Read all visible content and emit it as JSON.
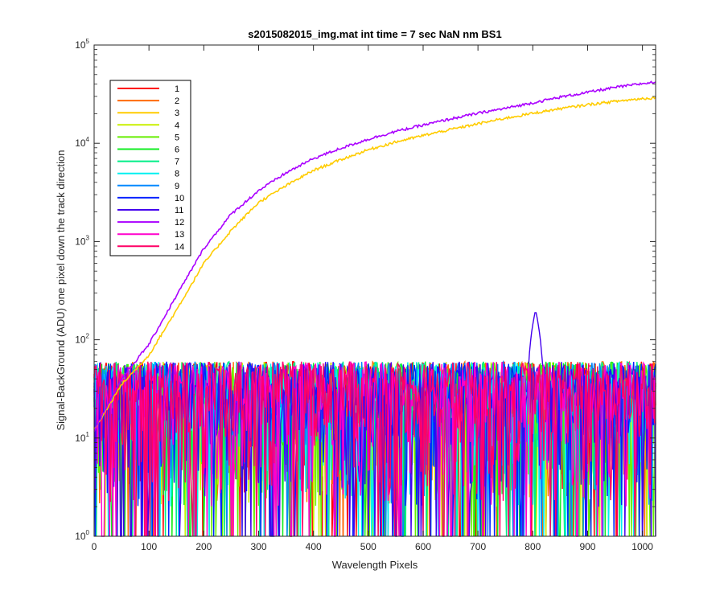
{
  "chart_data": {
    "type": "line",
    "title": "s2015082015_img.mat int time = 7 sec  NaN nm BS1",
    "xlabel": "Wavelength Pixels",
    "ylabel": "Signal-BackGround (ADU) one pixel down the track direction",
    "xlim": [
      0,
      1024
    ],
    "ylim": [
      1,
      100000
    ],
    "yscale": "log",
    "x_ticks": [
      0,
      100,
      200,
      300,
      400,
      500,
      600,
      700,
      800,
      900,
      1000
    ],
    "y_ticks": [
      {
        "base": "10",
        "exp": "0",
        "value": 1
      },
      {
        "base": "10",
        "exp": "1",
        "value": 10
      },
      {
        "base": "10",
        "exp": "2",
        "value": 100
      },
      {
        "base": "10",
        "exp": "3",
        "value": 1000
      },
      {
        "base": "10",
        "exp": "4",
        "value": 10000
      },
      {
        "base": "10",
        "exp": "5",
        "value": 100000
      }
    ],
    "grid": false,
    "legend_position": "top-left",
    "series": [
      {
        "name": "1",
        "color": "#ff0000",
        "kind": "noise"
      },
      {
        "name": "2",
        "color": "#ff6a00",
        "kind": "noise"
      },
      {
        "name": "3",
        "color": "#ffcc00",
        "kind": "rising",
        "points": [
          [
            0,
            12
          ],
          [
            50,
            35
          ],
          [
            100,
            70
          ],
          [
            150,
            200
          ],
          [
            200,
            600
          ],
          [
            250,
            1300
          ],
          [
            300,
            2500
          ],
          [
            350,
            3700
          ],
          [
            400,
            5300
          ],
          [
            450,
            6800
          ],
          [
            500,
            8600
          ],
          [
            550,
            10300
          ],
          [
            600,
            12000
          ],
          [
            650,
            13800
          ],
          [
            700,
            15800
          ],
          [
            750,
            18000
          ],
          [
            800,
            20200
          ],
          [
            850,
            22500
          ],
          [
            900,
            24700
          ],
          [
            950,
            26700
          ],
          [
            1000,
            28500
          ],
          [
            1024,
            29000
          ]
        ]
      },
      {
        "name": "4",
        "color": "#c8f000",
        "kind": "noise"
      },
      {
        "name": "5",
        "color": "#66ee00",
        "kind": "noise"
      },
      {
        "name": "6",
        "color": "#11ee22",
        "kind": "noise"
      },
      {
        "name": "7",
        "color": "#00ee88",
        "kind": "noise"
      },
      {
        "name": "8",
        "color": "#00f0f0",
        "kind": "noise"
      },
      {
        "name": "9",
        "color": "#0088ff",
        "kind": "noise"
      },
      {
        "name": "10",
        "color": "#0022ff",
        "kind": "noise"
      },
      {
        "name": "11",
        "color": "#4400ee",
        "kind": "noise_peak",
        "peak": {
          "x": 805,
          "y": 200
        }
      },
      {
        "name": "12",
        "color": "#aa00ff",
        "kind": "rising",
        "points": [
          [
            0,
            12
          ],
          [
            50,
            40
          ],
          [
            100,
            90
          ],
          [
            150,
            280
          ],
          [
            200,
            850
          ],
          [
            250,
            1900
          ],
          [
            300,
            3300
          ],
          [
            350,
            5000
          ],
          [
            400,
            7000
          ],
          [
            450,
            8900
          ],
          [
            500,
            11000
          ],
          [
            550,
            13200
          ],
          [
            600,
            15300
          ],
          [
            650,
            17700
          ],
          [
            700,
            20200
          ],
          [
            750,
            22700
          ],
          [
            800,
            25800
          ],
          [
            850,
            29500
          ],
          [
            900,
            33000
          ],
          [
            950,
            37000
          ],
          [
            1000,
            40500
          ],
          [
            1024,
            42000
          ]
        ]
      },
      {
        "name": "13",
        "color": "#ff00cc",
        "kind": "noise"
      },
      {
        "name": "14",
        "color": "#ff0066",
        "kind": "noise"
      }
    ]
  }
}
